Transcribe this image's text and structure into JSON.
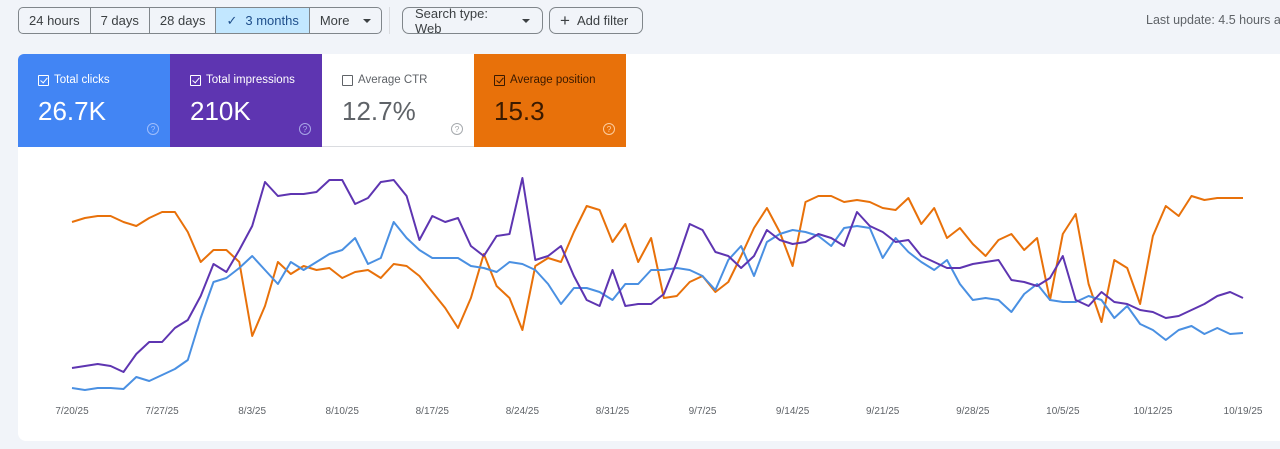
{
  "toolbar": {
    "date_ranges": [
      {
        "label": "24 hours",
        "active": false
      },
      {
        "label": "7 days",
        "active": false
      },
      {
        "label": "28 days",
        "active": false
      },
      {
        "label": "3 months",
        "active": true
      },
      {
        "label": "More",
        "active": false
      }
    ],
    "check_icon": "✓",
    "search_type": "Search type: Web",
    "add_filter": "Add filter",
    "add_icon": "+",
    "last_update": "Last update: 4.5 hours a"
  },
  "metrics": [
    {
      "label": "Total clicks",
      "value": "26.7K",
      "checked": true,
      "color": "#4285f4"
    },
    {
      "label": "Total impressions",
      "value": "210K",
      "checked": true,
      "color": "#5e35b1"
    },
    {
      "label": "Average CTR",
      "value": "12.7%",
      "checked": false,
      "color": "#ffffff"
    },
    {
      "label": "Average position",
      "value": "15.3",
      "checked": true,
      "color": "#e8710a"
    }
  ],
  "help_icon": "?",
  "chart_data": {
    "type": "line",
    "title": "Performance",
    "x_tick_labels": [
      "7/20/25",
      "7/27/25",
      "8/3/25",
      "8/10/25",
      "8/17/25",
      "8/24/25",
      "8/31/25",
      "9/7/25",
      "9/14/25",
      "9/21/25",
      "9/28/25",
      "10/5/25",
      "10/12/25",
      "10/19/25"
    ],
    "x_start": "7/20/25",
    "x_end": "10/19/25",
    "days": 92,
    "grid": false,
    "legend": "metric cards above chart",
    "y_axis_note": "values are pixel-space y positions (lower = higher value); axes unlabeled",
    "series": [
      {
        "name": "Total clicks",
        "color": "#4a90e2",
        "values": [
          388,
          390,
          388,
          388,
          389,
          377,
          381,
          375,
          369,
          360,
          318,
          282,
          278,
          268,
          256,
          270,
          284,
          262,
          270,
          262,
          254,
          250,
          238,
          264,
          258,
          222,
          238,
          250,
          258,
          258,
          258,
          266,
          268,
          272,
          262,
          264,
          270,
          284,
          304,
          288,
          288,
          292,
          300,
          284,
          284,
          270,
          270,
          268,
          270,
          276,
          290,
          260,
          246,
          276,
          242,
          234,
          230,
          232,
          236,
          246,
          228,
          226,
          228,
          258,
          238,
          252,
          262,
          270,
          260,
          284,
          300,
          298,
          300,
          312,
          294,
          284,
          300,
          302,
          302,
          296,
          300,
          318,
          306,
          324,
          330,
          340,
          330,
          326,
          334,
          328,
          334,
          333
        ]
      },
      {
        "name": "Total impressions",
        "color": "#5e35b1",
        "values": [
          368,
          366,
          364,
          366,
          372,
          354,
          342,
          342,
          328,
          320,
          296,
          264,
          272,
          250,
          226,
          182,
          196,
          194,
          194,
          192,
          180,
          180,
          204,
          198,
          182,
          180,
          196,
          240,
          216,
          222,
          218,
          246,
          256,
          236,
          234,
          178,
          260,
          256,
          246,
          276,
          300,
          306,
          270,
          306,
          304,
          304,
          294,
          262,
          224,
          230,
          252,
          256,
          268,
          256,
          230,
          240,
          244,
          242,
          234,
          238,
          246,
          212,
          226,
          232,
          242,
          240,
          256,
          262,
          268,
          268,
          264,
          262,
          260,
          280,
          282,
          286,
          278,
          256,
          300,
          306,
          292,
          302,
          304,
          310,
          312,
          318,
          316,
          310,
          304,
          296,
          292,
          298
        ]
      },
      {
        "name": "Average position",
        "color": "#e8710a",
        "values": [
          222,
          218,
          216,
          216,
          222,
          226,
          218,
          212,
          212,
          232,
          262,
          250,
          250,
          262,
          336,
          306,
          262,
          274,
          266,
          270,
          268,
          278,
          272,
          270,
          278,
          264,
          266,
          276,
          292,
          308,
          328,
          298,
          254,
          286,
          298,
          330,
          266,
          258,
          262,
          232,
          206,
          210,
          242,
          224,
          262,
          238,
          298,
          296,
          282,
          276,
          292,
          282,
          256,
          228,
          208,
          232,
          266,
          202,
          196,
          196,
          202,
          200,
          202,
          208,
          210,
          198,
          224,
          208,
          238,
          228,
          244,
          256,
          240,
          234,
          250,
          238,
          300,
          234,
          214,
          284,
          322,
          260,
          268,
          304,
          236,
          206,
          216,
          196,
          200,
          198,
          198,
          198
        ]
      }
    ]
  }
}
